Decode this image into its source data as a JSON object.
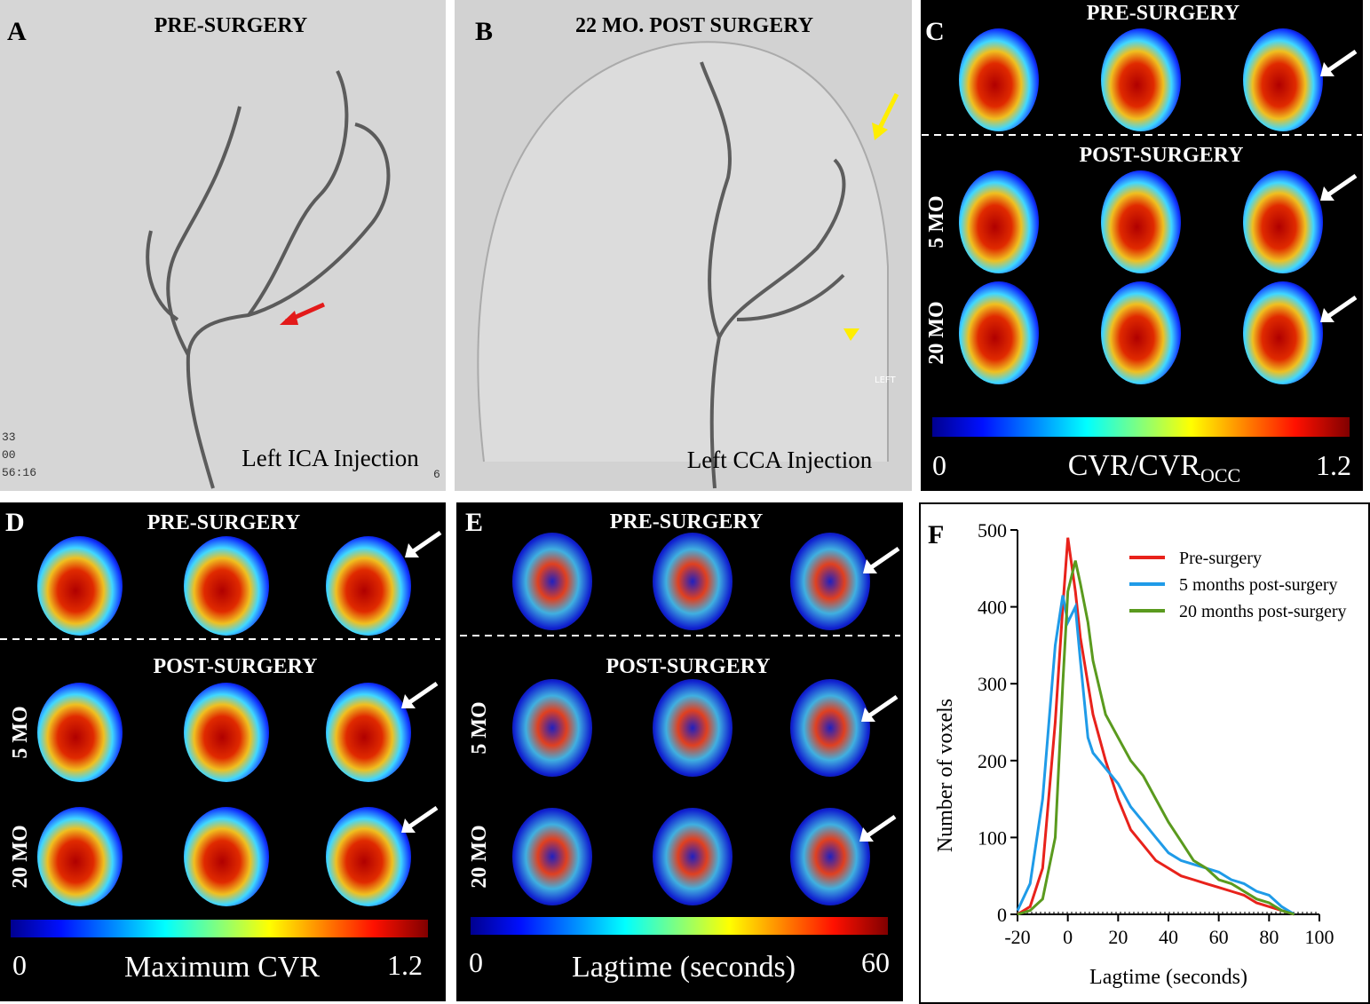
{
  "panels": {
    "a": {
      "letter": "A",
      "title": "PRE-SURGERY",
      "caption": "Left ICA Injection",
      "overlay": [
        "33",
        "00",
        "56:16",
        "6"
      ]
    },
    "b": {
      "letter": "B",
      "title": "22 MO. POST SURGERY",
      "caption": "Left CCA Injection",
      "overlay": [
        "LEFT"
      ]
    },
    "c": {
      "letter": "C",
      "top": "PRE-SURGERY",
      "bottom": "POST-SURGERY",
      "rows": [
        "5 MO",
        "20 MO"
      ],
      "scale_min": 0,
      "scale_label": "CVR/CVR",
      "scale_label_subscript": "OCC",
      "scale_max": 1.2
    },
    "d": {
      "letter": "D",
      "top": "PRE-SURGERY",
      "bottom": "POST-SURGERY",
      "rows": [
        "5 MO",
        "20 MO"
      ],
      "scale_min": 0,
      "scale_label": "Maximum CVR",
      "scale_max": 1.2
    },
    "e": {
      "letter": "E",
      "top": "PRE-SURGERY",
      "bottom": "POST-SURGERY",
      "rows": [
        "5 MO",
        "20 MO"
      ],
      "scale_min": 0,
      "scale_label": "Lagtime (seconds)",
      "scale_max": 60
    }
  },
  "chart_data": {
    "type": "line",
    "panel_label": "F",
    "xlabel": "Lagtime (seconds)",
    "ylabel": "Number of voxels",
    "x": [
      -20,
      -15,
      -10,
      -5,
      -2,
      0,
      3,
      5,
      8,
      10,
      15,
      20,
      25,
      30,
      35,
      40,
      45,
      50,
      55,
      60,
      65,
      70,
      75,
      80,
      85,
      90
    ],
    "series": [
      {
        "name": "Pre-surgery",
        "color": "#e8221b",
        "values": [
          0,
          10,
          60,
          250,
          400,
          490,
          420,
          360,
          300,
          260,
          200,
          150,
          110,
          90,
          70,
          60,
          50,
          45,
          40,
          35,
          30,
          25,
          15,
          10,
          5,
          0
        ]
      },
      {
        "name": "5 months post-surgery",
        "color": "#1f9be8",
        "values": [
          5,
          40,
          150,
          350,
          415,
          380,
          400,
          330,
          230,
          210,
          190,
          170,
          140,
          120,
          100,
          80,
          70,
          65,
          60,
          55,
          45,
          40,
          30,
          25,
          10,
          0
        ]
      },
      {
        "name": "20 months post-surgery",
        "color": "#5a9a1e",
        "values": [
          0,
          5,
          20,
          100,
          300,
          420,
          460,
          430,
          380,
          330,
          260,
          230,
          200,
          180,
          150,
          120,
          95,
          70,
          60,
          45,
          40,
          30,
          20,
          15,
          5,
          0
        ]
      }
    ],
    "xlim": [
      -20,
      100
    ],
    "ylim": [
      0,
      500
    ],
    "xticks": [
      -20,
      0,
      20,
      40,
      60,
      80,
      100
    ],
    "yticks": [
      0,
      100,
      200,
      300,
      400,
      500
    ]
  }
}
